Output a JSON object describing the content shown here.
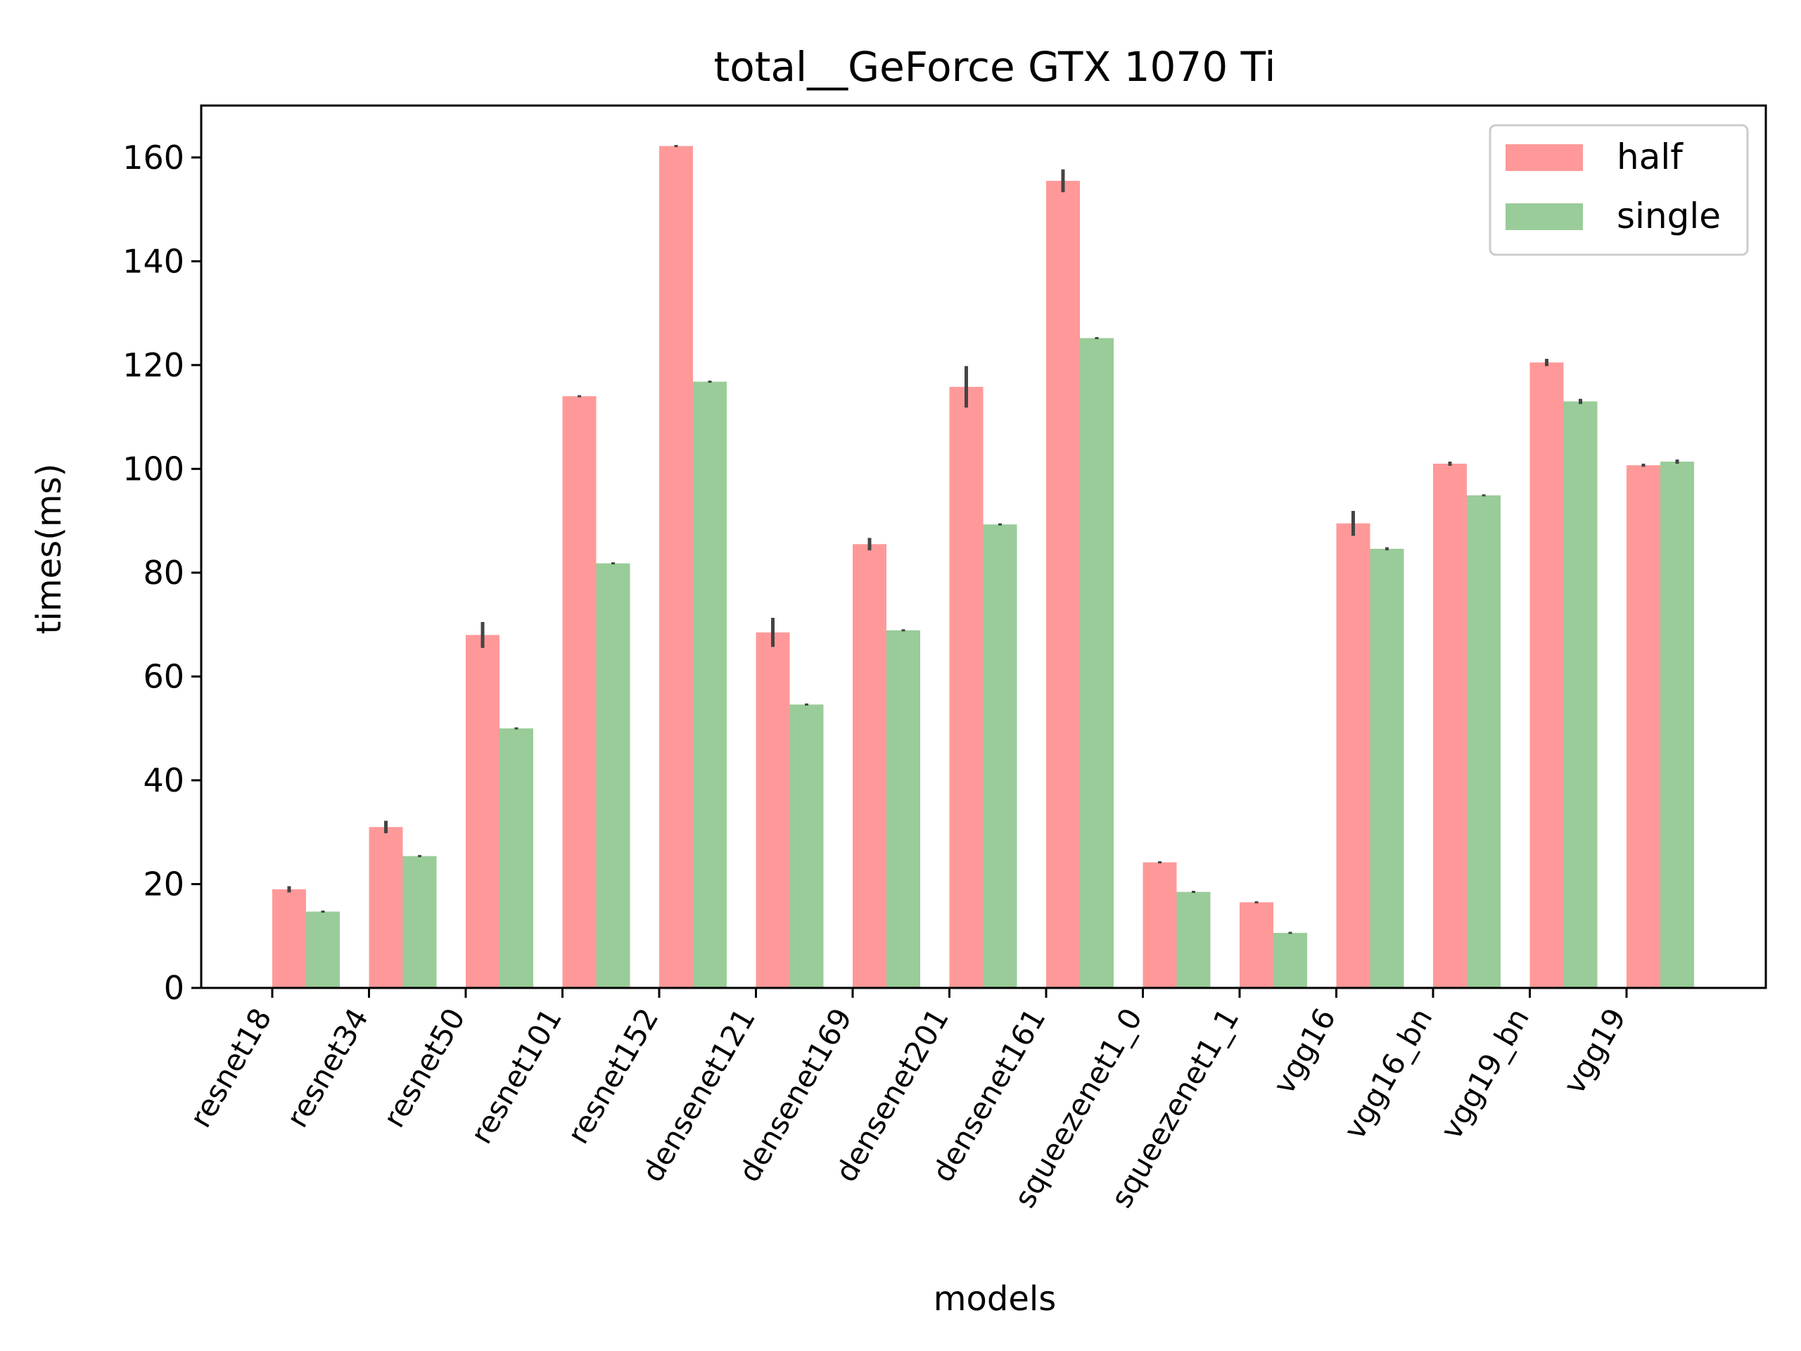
{
  "chart_data": {
    "type": "bar",
    "title": "total__GeForce GTX 1070 Ti",
    "xlabel": "models",
    "ylabel": "times(ms)",
    "ylim": [
      0,
      170
    ],
    "yticks": [
      0,
      20,
      40,
      60,
      80,
      100,
      120,
      140,
      160
    ],
    "grid": false,
    "legend_position": "top-right",
    "categories": [
      "resnet18",
      "resnet34",
      "resnet50",
      "resnet101",
      "resnet152",
      "densenet121",
      "densenet169",
      "densenet201",
      "densenet161",
      "squeezenet1_0",
      "squeezenet1_1",
      "vgg16",
      "vgg16_bn",
      "vgg19_bn",
      "vgg19"
    ],
    "series": [
      {
        "name": "half",
        "color": "#ff9999",
        "values": [
          19.0,
          31.0,
          68.0,
          114.0,
          162.2,
          68.5,
          85.5,
          115.8,
          155.5,
          24.2,
          16.5,
          89.5,
          101.0,
          120.5,
          100.7
        ],
        "error": [
          0.6,
          1.2,
          2.5,
          0.2,
          0.2,
          2.8,
          1.2,
          4.0,
          2.2,
          0.1,
          0.1,
          2.4,
          0.4,
          0.7,
          0.3
        ]
      },
      {
        "name": "single",
        "color": "#99cc99",
        "values": [
          14.7,
          25.4,
          50.0,
          81.8,
          116.8,
          54.6,
          68.9,
          89.3,
          125.2,
          18.5,
          10.6,
          84.6,
          94.9,
          113.0,
          101.4
        ],
        "error": [
          0.1,
          0.1,
          0.1,
          0.2,
          0.1,
          0.1,
          0.1,
          0.1,
          0.1,
          0.1,
          0.1,
          0.3,
          0.2,
          0.5,
          0.4
        ]
      }
    ]
  }
}
